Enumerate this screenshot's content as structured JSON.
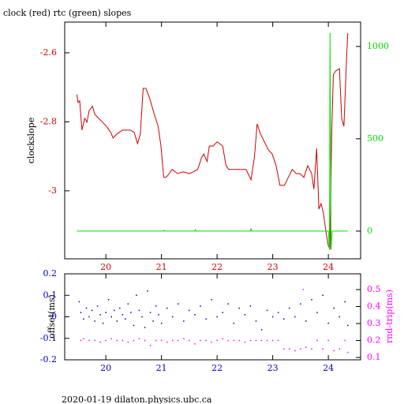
{
  "chart_data": [
    {
      "type": "line",
      "title": "clock (red) rtc (green) slopes",
      "ylabel": "clockslope",
      "xlim": [
        19.26,
        24.58
      ],
      "xticks": [
        20,
        21,
        22,
        23,
        24
      ],
      "ylim": [
        -3.197,
        -2.511
      ],
      "yticks": [
        -2.6,
        -2.8,
        -3
      ],
      "y2lim": [
        -150,
        1132
      ],
      "y2ticks": [
        0,
        500,
        1000
      ],
      "series": [
        {
          "name": "clock",
          "color": "#d00000",
          "axis": "y",
          "x": [
            19.48,
            19.5,
            19.53,
            19.57,
            19.62,
            19.66,
            19.7,
            19.76,
            19.8,
            19.87,
            19.94,
            20.01,
            20.09,
            20.13,
            20.2,
            20.3,
            20.44,
            20.51,
            20.57,
            20.62,
            20.67,
            20.72,
            20.79,
            20.87,
            20.94,
            20.99,
            21.04,
            21.08,
            21.12,
            21.19,
            21.29,
            21.39,
            21.5,
            21.57,
            21.65,
            21.72,
            21.76,
            21.82,
            21.86,
            21.93,
            22.0,
            22.1,
            22.16,
            22.21,
            22.33,
            22.43,
            22.52,
            22.61,
            22.67,
            22.72,
            22.78,
            22.85,
            22.92,
            22.99,
            23.06,
            23.13,
            23.21,
            23.28,
            23.35,
            23.42,
            23.49,
            23.56,
            23.63,
            23.7,
            23.74,
            23.79,
            23.83,
            23.87,
            23.91,
            23.96,
            24.0,
            24.03,
            24.06,
            24.09,
            24.13,
            24.2,
            24.24,
            24.28,
            24.33,
            24.35
          ],
          "values": [
            -2.721,
            -2.744,
            -2.739,
            -2.824,
            -2.79,
            -2.801,
            -2.767,
            -2.755,
            -2.778,
            -2.79,
            -2.801,
            -2.813,
            -2.831,
            -2.847,
            -2.835,
            -2.824,
            -2.824,
            -2.831,
            -2.863,
            -2.835,
            -2.703,
            -2.703,
            -2.733,
            -2.778,
            -2.813,
            -2.87,
            -2.961,
            -2.961,
            -2.954,
            -2.938,
            -2.95,
            -2.945,
            -2.95,
            -2.945,
            -2.938,
            -2.904,
            -2.893,
            -2.915,
            -2.87,
            -2.87,
            -2.858,
            -2.87,
            -2.927,
            -2.938,
            -2.938,
            -2.938,
            -2.938,
            -2.968,
            -2.904,
            -2.806,
            -2.835,
            -2.858,
            -2.881,
            -2.893,
            -2.927,
            -2.984,
            -2.984,
            -2.961,
            -2.938,
            -2.95,
            -2.95,
            -2.961,
            -2.927,
            -2.95,
            -2.995,
            -2.877,
            -3.053,
            -3.037,
            -3.064,
            -3.121,
            -3.16,
            -3.167,
            -2.835,
            -2.664,
            -2.653,
            -2.646,
            -2.79,
            -2.813,
            -2.607,
            -2.543
          ]
        },
        {
          "name": "rtc",
          "color": "#00e000",
          "axis": "y2",
          "x": [
            19.48,
            21.04,
            21.05,
            21.06,
            21.6,
            21.61,
            21.62,
            22.6,
            22.61,
            22.62,
            24.0,
            24.02,
            24.03,
            24.05,
            24.07,
            24.35
          ],
          "values": [
            0,
            0,
            5,
            0,
            0,
            8,
            0,
            0,
            15,
            0,
            0,
            -100,
            1073,
            -100,
            0,
            0
          ]
        }
      ]
    },
    {
      "type": "scatter",
      "ylabel": "offset(ms)",
      "y2label": "rnd-trip(ms)",
      "xlim": [
        19.26,
        24.58
      ],
      "xticks": [
        20,
        21,
        22,
        23,
        24
      ],
      "ylim": [
        -0.2,
        0.2
      ],
      "yticks": [
        0.2,
        0.1,
        0,
        -0.1,
        -0.2
      ],
      "y2lim": [
        0.086,
        0.593
      ],
      "y2ticks": [
        0.5,
        0.4,
        0.3,
        0.2,
        0.1
      ],
      "series": [
        {
          "name": "offset",
          "color": "#0000c0",
          "axis": "y",
          "x": [
            19.52,
            19.55,
            19.6,
            19.65,
            19.7,
            19.75,
            19.8,
            19.85,
            19.9,
            19.95,
            20.0,
            20.05,
            20.1,
            20.15,
            20.2,
            20.25,
            20.3,
            20.35,
            20.4,
            20.45,
            20.5,
            20.55,
            20.6,
            20.65,
            20.7,
            20.75,
            20.8,
            20.85,
            20.9,
            20.95,
            21.0,
            21.1,
            21.2,
            21.3,
            21.4,
            21.5,
            21.6,
            21.7,
            21.8,
            21.9,
            22.0,
            22.1,
            22.2,
            22.3,
            22.4,
            22.5,
            22.6,
            22.7,
            22.8,
            22.9,
            23.0,
            23.1,
            23.2,
            23.3,
            23.4,
            23.5,
            23.6,
            23.7,
            23.8,
            23.9,
            24.0,
            24.1,
            24.2,
            24.3,
            24.35
          ],
          "values": [
            0.07,
            0.02,
            -0.01,
            0.04,
            0.0,
            0.03,
            -0.02,
            0.05,
            0.01,
            -0.03,
            0.02,
            0.08,
            0.0,
            0.03,
            -0.02,
            0.04,
            0.01,
            -0.01,
            0.06,
            0.02,
            -0.04,
            0.1,
            0.03,
            0.0,
            -0.05,
            0.12,
            0.02,
            -0.02,
            0.05,
            0.01,
            -0.03,
            0.04,
            0.0,
            0.06,
            -0.02,
            0.03,
            0.01,
            0.05,
            -0.01,
            0.08,
            0.0,
            0.02,
            0.06,
            -0.03,
            0.04,
            0.01,
            0.05,
            -0.02,
            -0.06,
            0.03,
            0.0,
            0.02,
            -0.01,
            0.04,
            0.0,
            0.06,
            -0.02,
            0.08,
            0.02,
            0.1,
            -0.03,
            0.04,
            0.0,
            0.07,
            -0.04
          ]
        },
        {
          "name": "rnd-trip",
          "color": "#ff00ff",
          "axis": "y2",
          "x": [
            19.55,
            19.6,
            19.7,
            19.8,
            19.9,
            20.0,
            20.1,
            20.2,
            20.3,
            20.4,
            20.5,
            20.6,
            20.7,
            20.8,
            20.9,
            21.0,
            21.1,
            21.2,
            21.3,
            21.4,
            21.5,
            21.6,
            21.7,
            21.8,
            21.9,
            22.0,
            22.1,
            22.2,
            22.3,
            22.4,
            22.5,
            22.6,
            22.7,
            22.8,
            22.9,
            23.0,
            23.1,
            23.2,
            23.3,
            23.4,
            23.5,
            23.55,
            23.6,
            23.7,
            23.8,
            23.9,
            24.0,
            24.1,
            24.2,
            24.3,
            24.35
          ],
          "values": [
            0.2,
            0.21,
            0.2,
            0.2,
            0.19,
            0.2,
            0.21,
            0.2,
            0.2,
            0.19,
            0.2,
            0.21,
            0.2,
            0.17,
            0.2,
            0.2,
            0.19,
            0.2,
            0.2,
            0.21,
            0.2,
            0.18,
            0.2,
            0.2,
            0.19,
            0.2,
            0.21,
            0.2,
            0.2,
            0.2,
            0.19,
            0.2,
            0.2,
            0.2,
            0.2,
            0.2,
            0.2,
            0.15,
            0.15,
            0.14,
            0.15,
            0.5,
            0.16,
            0.15,
            0.2,
            0.15,
            0.2,
            0.14,
            0.15,
            0.2,
            0.13
          ]
        }
      ]
    }
  ],
  "footer": "2020-01-19 dilaton.physics.ubc.ca"
}
